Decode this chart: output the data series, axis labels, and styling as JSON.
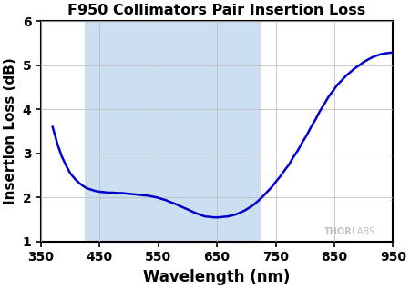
{
  "title": "F950 Collimators Pair Insertion Loss",
  "xlabel": "Wavelength (nm)",
  "ylabel": "Insertion Loss (dB)",
  "xlim": [
    350,
    950
  ],
  "ylim": [
    1,
    6
  ],
  "xticks": [
    350,
    450,
    550,
    650,
    750,
    850,
    950
  ],
  "yticks": [
    1,
    2,
    3,
    4,
    5,
    6
  ],
  "shade_xmin": 425,
  "shade_xmax": 725,
  "line_color": "#0000CC",
  "shade_color": "#CCDFF0",
  "background_color": "#FFFFFF",
  "grid_color": "#BBBBBB",
  "thorlabs_text": "THORLABS",
  "thorlabs_x": 880,
  "thorlabs_y": 1.12,
  "curve_x": [
    370,
    378,
    385,
    393,
    400,
    408,
    415,
    422,
    428,
    435,
    442,
    450,
    458,
    465,
    473,
    480,
    488,
    495,
    503,
    510,
    518,
    525,
    533,
    540,
    548,
    555,
    563,
    570,
    578,
    585,
    593,
    600,
    608,
    615,
    623,
    630,
    638,
    645,
    653,
    660,
    668,
    675,
    683,
    690,
    698,
    705,
    713,
    720,
    728,
    735,
    743,
    750,
    758,
    765,
    773,
    780,
    788,
    795,
    803,
    810,
    818,
    825,
    833,
    840,
    848,
    855,
    863,
    870,
    878,
    885,
    893,
    900,
    908,
    915,
    923,
    930,
    938,
    945,
    950
  ],
  "curve_y": [
    3.6,
    3.22,
    2.95,
    2.72,
    2.55,
    2.42,
    2.33,
    2.26,
    2.21,
    2.18,
    2.15,
    2.13,
    2.12,
    2.11,
    2.11,
    2.1,
    2.1,
    2.09,
    2.08,
    2.07,
    2.06,
    2.05,
    2.04,
    2.02,
    2.0,
    1.97,
    1.94,
    1.9,
    1.86,
    1.82,
    1.77,
    1.73,
    1.68,
    1.64,
    1.6,
    1.57,
    1.56,
    1.55,
    1.55,
    1.56,
    1.57,
    1.59,
    1.62,
    1.66,
    1.71,
    1.77,
    1.84,
    1.92,
    2.02,
    2.12,
    2.23,
    2.35,
    2.48,
    2.61,
    2.75,
    2.91,
    3.07,
    3.24,
    3.41,
    3.59,
    3.77,
    3.95,
    4.12,
    4.28,
    4.42,
    4.55,
    4.66,
    4.76,
    4.85,
    4.93,
    5.0,
    5.07,
    5.13,
    5.18,
    5.22,
    5.25,
    5.27,
    5.28,
    5.29
  ]
}
